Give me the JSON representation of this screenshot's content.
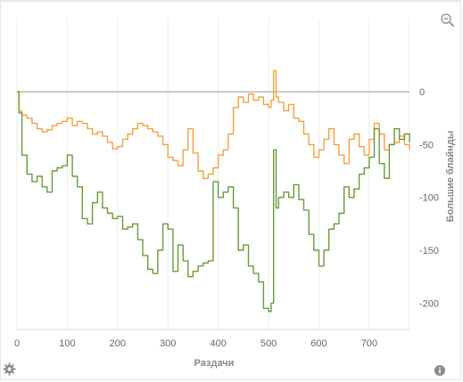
{
  "toolbar": {
    "zoom_icon": "zoom-out-icon",
    "settings_icon": "gear-icon",
    "info_icon": "info-icon"
  },
  "chart_data": {
    "type": "line",
    "xlabel": "Раздачи",
    "ylabel": "Большие блайнды",
    "xlim": [
      0,
      780
    ],
    "ylim": [
      -225,
      70
    ],
    "x_ticks": [
      0,
      100,
      200,
      300,
      400,
      500,
      600,
      700
    ],
    "y_ticks": [
      0,
      -50,
      -100,
      -150,
      -200
    ],
    "grid": "vertical",
    "legend": "none",
    "zero_line": true,
    "series": [
      {
        "color": "#f5a040",
        "x": [
          0,
          4,
          10,
          20,
          30,
          40,
          50,
          60,
          70,
          80,
          90,
          100,
          110,
          120,
          130,
          140,
          150,
          160,
          170,
          180,
          190,
          200,
          210,
          220,
          230,
          240,
          250,
          260,
          270,
          280,
          290,
          300,
          310,
          320,
          330,
          340,
          350,
          360,
          370,
          380,
          390,
          400,
          410,
          420,
          430,
          440,
          450,
          460,
          470,
          480,
          490,
          500,
          505,
          510,
          515,
          520,
          530,
          540,
          550,
          560,
          570,
          580,
          590,
          600,
          610,
          620,
          630,
          640,
          650,
          660,
          670,
          680,
          690,
          700,
          710,
          720,
          730,
          740,
          750,
          760,
          770,
          780
        ],
        "values": [
          0,
          -18,
          -22,
          -25,
          -30,
          -35,
          -38,
          -36,
          -32,
          -30,
          -28,
          -25,
          -32,
          -28,
          -30,
          -35,
          -40,
          -38,
          -42,
          -48,
          -54,
          -52,
          -45,
          -40,
          -35,
          -30,
          -32,
          -35,
          -38,
          -42,
          -50,
          -62,
          -65,
          -70,
          -55,
          -35,
          -58,
          -75,
          -82,
          -78,
          -72,
          -60,
          -55,
          -40,
          -15,
          -5,
          -10,
          -2,
          -8,
          -5,
          -12,
          -15,
          -8,
          20,
          -5,
          -10,
          -18,
          -12,
          -25,
          -28,
          -40,
          -50,
          -62,
          -55,
          -45,
          -35,
          -50,
          -60,
          -68,
          -45,
          -40,
          -52,
          -60,
          -45,
          -30,
          -40,
          -55,
          -50,
          -48,
          -42,
          -50,
          -55
        ]
      },
      {
        "color": "#6a9a3a",
        "x": [
          0,
          4,
          10,
          20,
          30,
          40,
          50,
          60,
          70,
          80,
          90,
          100,
          110,
          120,
          130,
          140,
          150,
          160,
          170,
          180,
          190,
          200,
          210,
          220,
          230,
          240,
          250,
          260,
          270,
          280,
          290,
          300,
          310,
          320,
          330,
          340,
          350,
          360,
          370,
          380,
          390,
          400,
          410,
          420,
          430,
          440,
          450,
          460,
          470,
          480,
          490,
          500,
          505,
          510,
          515,
          520,
          530,
          540,
          550,
          560,
          570,
          580,
          590,
          600,
          610,
          620,
          630,
          640,
          650,
          660,
          670,
          680,
          690,
          700,
          710,
          720,
          730,
          740,
          750,
          760,
          770,
          780
        ],
        "values": [
          0,
          -20,
          -60,
          -78,
          -85,
          -80,
          -90,
          -95,
          -75,
          -72,
          -70,
          -60,
          -80,
          -90,
          -120,
          -125,
          -105,
          -95,
          -110,
          -115,
          -120,
          -118,
          -130,
          -128,
          -125,
          -140,
          -155,
          -168,
          -172,
          -150,
          -125,
          -130,
          -170,
          -145,
          -160,
          -175,
          -170,
          -165,
          -162,
          -160,
          -85,
          -100,
          -95,
          -90,
          -110,
          -150,
          -145,
          -165,
          -172,
          -180,
          -205,
          -208,
          -200,
          -55,
          -110,
          -100,
          -95,
          -100,
          -88,
          -102,
          -112,
          -135,
          -150,
          -165,
          -150,
          -130,
          -125,
          -115,
          -90,
          -100,
          -92,
          -78,
          -72,
          -62,
          -35,
          -68,
          -82,
          -50,
          -35,
          -45,
          -40,
          -48
        ]
      }
    ]
  }
}
